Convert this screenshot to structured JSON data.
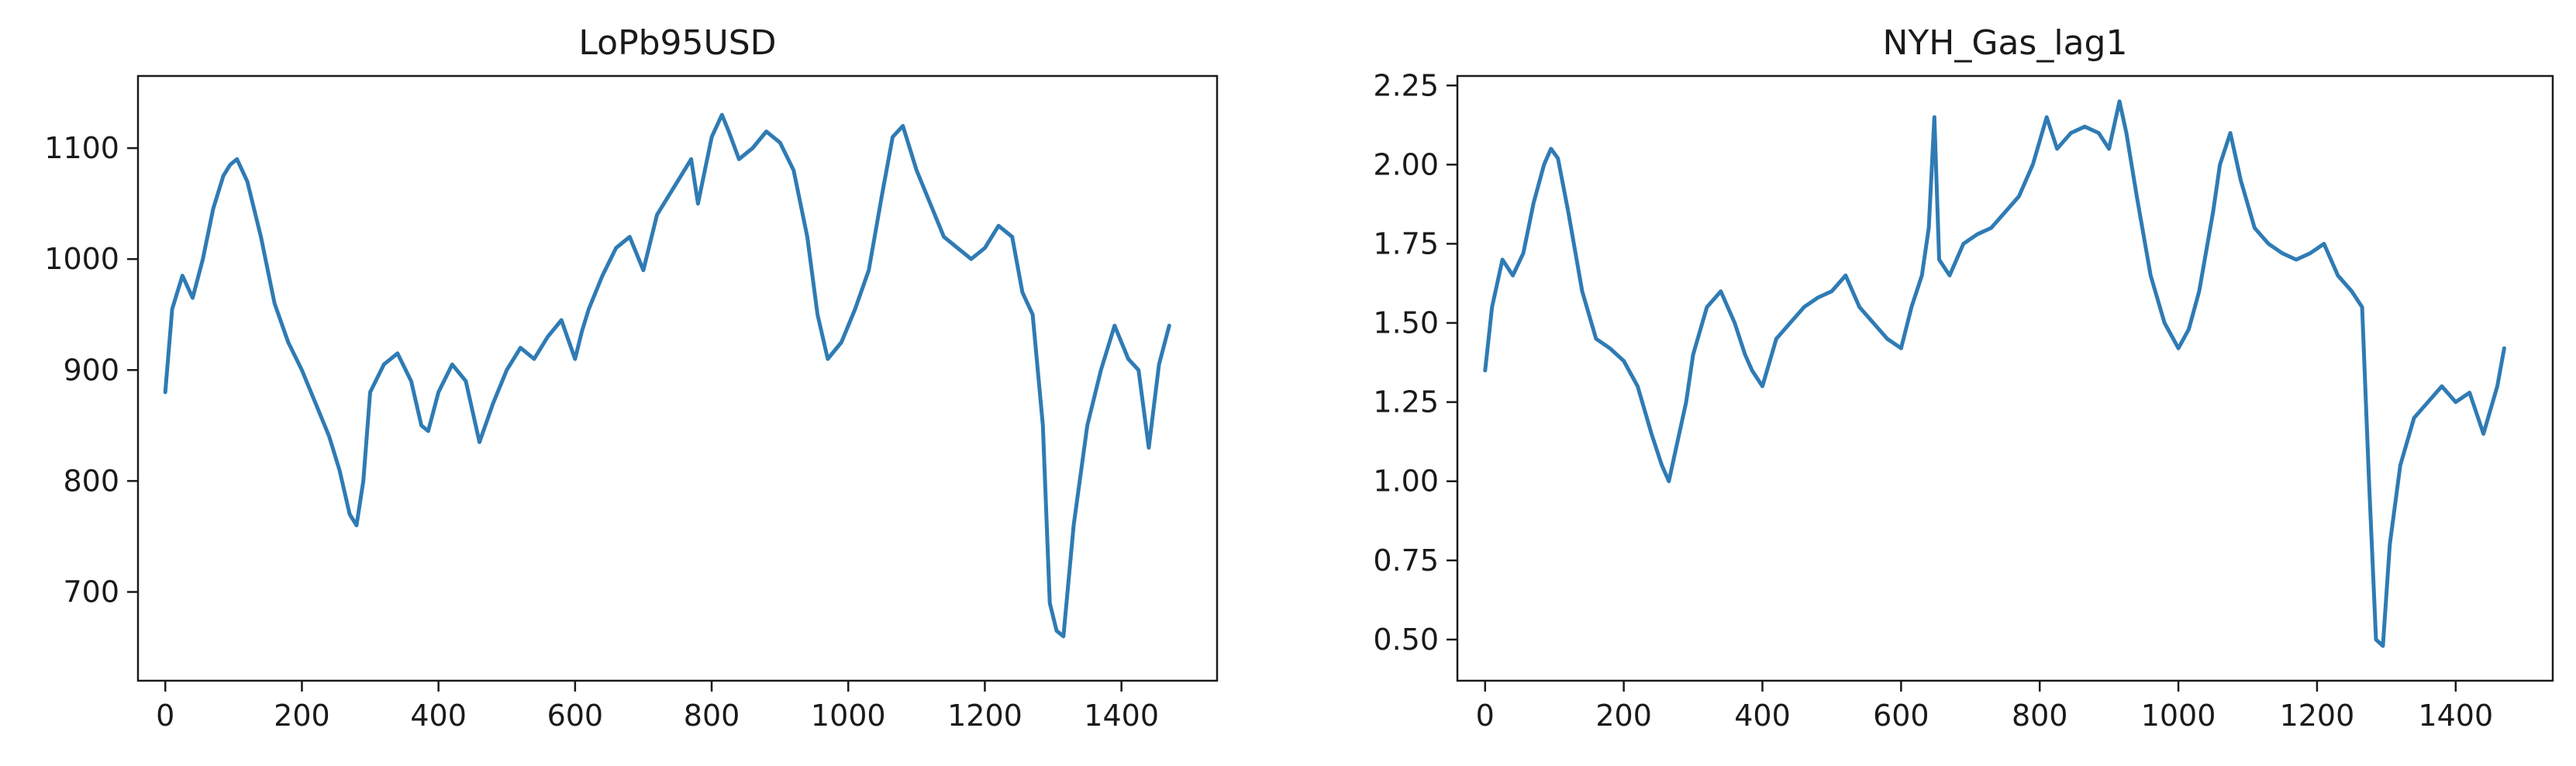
{
  "colors": {
    "line": "#2f7bb4",
    "axes": "#1a1a1a",
    "background": "#ffffff"
  },
  "chart_data": [
    {
      "type": "line",
      "title": "LoPb95USD",
      "xlabel": "",
      "ylabel": "",
      "xlim": [
        -40,
        1540
      ],
      "ylim": [
        620,
        1165
      ],
      "xticks": [
        0,
        200,
        400,
        600,
        800,
        1000,
        1200,
        1400
      ],
      "xtick_labels": [
        "0",
        "200",
        "400",
        "600",
        "800",
        "1000",
        "1200",
        "1400"
      ],
      "yticks": [
        700,
        800,
        900,
        1000,
        1100
      ],
      "ytick_labels": [
        "700",
        "800",
        "900",
        "1000",
        "1100"
      ],
      "grid": false,
      "series": [
        {
          "color": "#2f7bb4",
          "x": [
            0,
            10,
            25,
            40,
            55,
            70,
            85,
            95,
            105,
            120,
            140,
            160,
            180,
            200,
            220,
            240,
            255,
            270,
            280,
            290,
            300,
            320,
            340,
            360,
            375,
            385,
            400,
            420,
            440,
            460,
            480,
            500,
            520,
            540,
            560,
            580,
            600,
            610,
            620,
            640,
            660,
            680,
            700,
            720,
            740,
            760,
            770,
            780,
            800,
            815,
            825,
            840,
            860,
            880,
            900,
            920,
            940,
            955,
            970,
            990,
            1010,
            1030,
            1050,
            1065,
            1080,
            1100,
            1120,
            1140,
            1160,
            1180,
            1200,
            1220,
            1240,
            1255,
            1270,
            1285,
            1295,
            1305,
            1315,
            1330,
            1350,
            1370,
            1390,
            1410,
            1425,
            1440,
            1455,
            1470
          ],
          "y": [
            880,
            955,
            985,
            965,
            1000,
            1045,
            1075,
            1085,
            1090,
            1070,
            1020,
            960,
            925,
            900,
            870,
            840,
            810,
            770,
            760,
            800,
            880,
            905,
            915,
            890,
            850,
            845,
            880,
            905,
            890,
            835,
            870,
            900,
            920,
            910,
            930,
            945,
            910,
            935,
            955,
            985,
            1010,
            1020,
            990,
            1040,
            1060,
            1080,
            1090,
            1050,
            1110,
            1130,
            1115,
            1090,
            1100,
            1115,
            1105,
            1080,
            1020,
            950,
            910,
            925,
            955,
            990,
            1060,
            1110,
            1120,
            1080,
            1050,
            1020,
            1010,
            1000,
            1010,
            1030,
            1020,
            970,
            950,
            850,
            690,
            665,
            660,
            760,
            850,
            900,
            940,
            910,
            900,
            830,
            905,
            940
          ]
        }
      ]
    },
    {
      "type": "line",
      "title": "NYH_Gas_lag1",
      "xlabel": "",
      "ylabel": "",
      "xlim": [
        -40,
        1540
      ],
      "ylim": [
        0.37,
        2.28
      ],
      "xticks": [
        0,
        200,
        400,
        600,
        800,
        1000,
        1200,
        1400
      ],
      "xtick_labels": [
        "0",
        "200",
        "400",
        "600",
        "800",
        "1000",
        "1200",
        "1400"
      ],
      "yticks": [
        0.5,
        0.75,
        1.0,
        1.25,
        1.5,
        1.75,
        2.0,
        2.25
      ],
      "ytick_labels": [
        "0.50",
        "0.75",
        "1.00",
        "1.25",
        "1.50",
        "1.75",
        "2.00",
        "2.25"
      ],
      "grid": false,
      "series": [
        {
          "color": "#2f7bb4",
          "x": [
            0,
            10,
            25,
            40,
            55,
            70,
            85,
            95,
            105,
            120,
            140,
            160,
            180,
            200,
            220,
            240,
            255,
            265,
            275,
            290,
            300,
            320,
            340,
            360,
            375,
            385,
            400,
            420,
            440,
            460,
            480,
            500,
            520,
            540,
            560,
            580,
            600,
            615,
            630,
            640,
            648,
            655,
            670,
            690,
            710,
            730,
            750,
            770,
            790,
            810,
            825,
            845,
            865,
            885,
            900,
            915,
            925,
            940,
            960,
            980,
            1000,
            1015,
            1030,
            1050,
            1060,
            1075,
            1090,
            1110,
            1130,
            1150,
            1170,
            1190,
            1210,
            1230,
            1250,
            1265,
            1275,
            1285,
            1295,
            1305,
            1320,
            1340,
            1360,
            1380,
            1400,
            1420,
            1440,
            1460,
            1470
          ],
          "y": [
            1.35,
            1.55,
            1.7,
            1.65,
            1.72,
            1.88,
            2.0,
            2.05,
            2.02,
            1.85,
            1.6,
            1.45,
            1.42,
            1.38,
            1.3,
            1.15,
            1.05,
            1.0,
            1.1,
            1.25,
            1.4,
            1.55,
            1.6,
            1.5,
            1.4,
            1.35,
            1.3,
            1.45,
            1.5,
            1.55,
            1.58,
            1.6,
            1.65,
            1.55,
            1.5,
            1.45,
            1.42,
            1.55,
            1.65,
            1.8,
            2.15,
            1.7,
            1.65,
            1.75,
            1.78,
            1.8,
            1.85,
            1.9,
            2.0,
            2.15,
            2.05,
            2.1,
            2.12,
            2.1,
            2.05,
            2.2,
            2.1,
            1.9,
            1.65,
            1.5,
            1.42,
            1.48,
            1.6,
            1.85,
            2.0,
            2.1,
            1.95,
            1.8,
            1.75,
            1.72,
            1.7,
            1.72,
            1.75,
            1.65,
            1.6,
            1.55,
            1.0,
            0.5,
            0.48,
            0.8,
            1.05,
            1.2,
            1.25,
            1.3,
            1.25,
            1.28,
            1.15,
            1.3,
            1.42
          ]
        }
      ]
    }
  ]
}
